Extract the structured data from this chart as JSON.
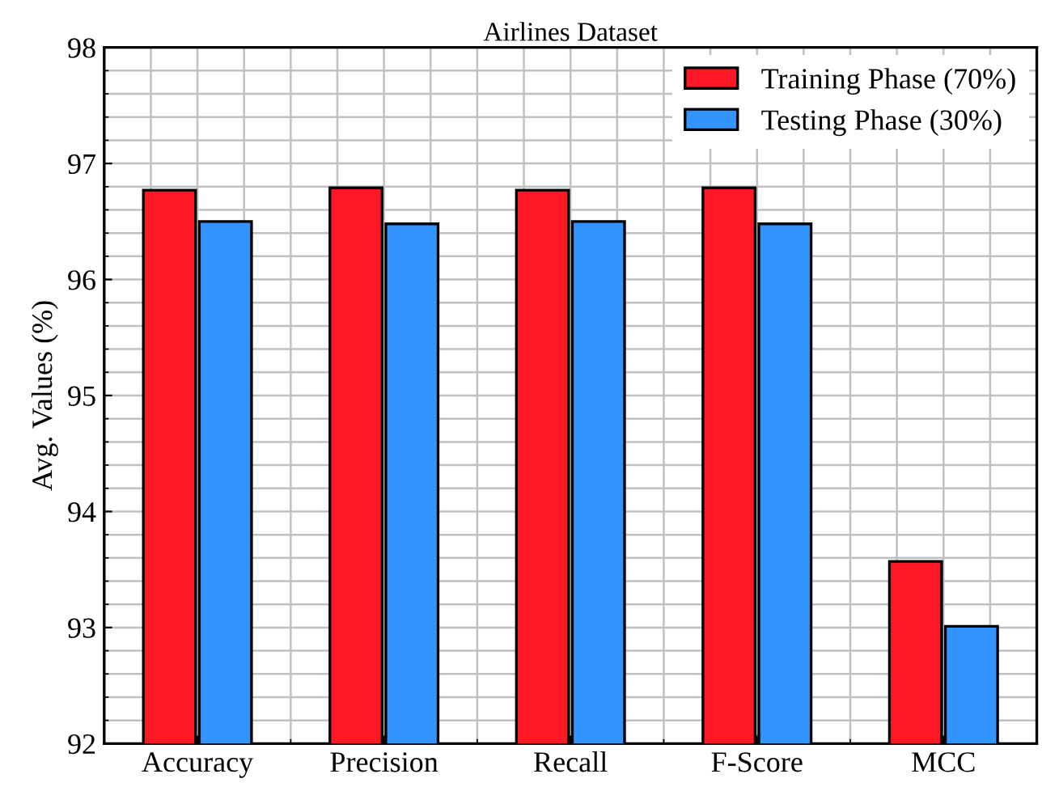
{
  "chart_data": {
    "type": "bar",
    "title": "Airlines Dataset",
    "ylabel": "Avg. Values (%)",
    "categories": [
      "Accuracy",
      "Precision",
      "Recall",
      "F-Score",
      "MCC"
    ],
    "series": [
      {
        "name": "Training Phase (70%)",
        "color": "#fe1826",
        "values": [
          96.77,
          96.79,
          96.77,
          96.79,
          93.57
        ]
      },
      {
        "name": "Testing Phase (30%)",
        "color": "#3394fe",
        "values": [
          96.5,
          96.48,
          96.5,
          96.48,
          93.01
        ]
      }
    ],
    "ylim": [
      92,
      98
    ],
    "yticks": [
      92,
      93,
      94,
      95,
      96,
      97,
      98
    ],
    "grid": true,
    "legend": "top right"
  }
}
